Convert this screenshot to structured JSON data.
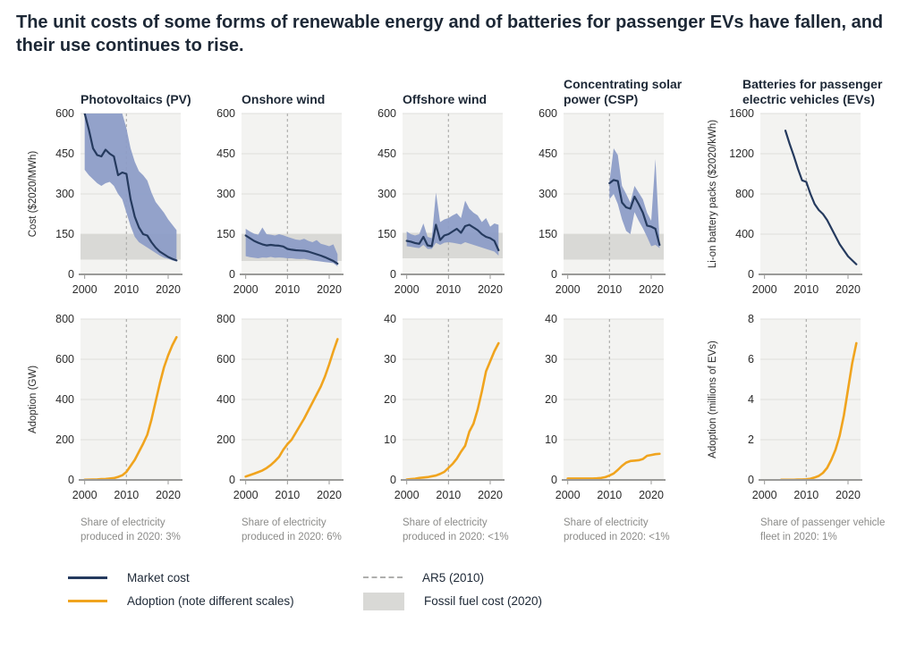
{
  "title": "The unit costs of some forms of renewable energy and of batteries for passenger EVs have fallen, and their use continues to rise.",
  "colors": {
    "navy": "#253A5E",
    "orange": "#F0A41E",
    "band": "#8D9DC7",
    "fossil": "#D9D9D6",
    "plot_bg": "#F3F3F1",
    "grid": "#DFDFDC",
    "axis": "#9A9A98",
    "dashed": "#AFAFAD",
    "tick": "#2B2B2B",
    "title_text": "#1D2836",
    "caption_text": "#8B8B89"
  },
  "legend": {
    "market_cost": "Market cost",
    "adoption": "Adoption (note different scales)",
    "ar5": "AR5 (2010)",
    "fossil": "Fossil fuel cost (2020)"
  },
  "chart_data": [
    {
      "id": "pv-cost",
      "type": "line",
      "title": "Photovoltaics (PV)",
      "ylabel": "Cost ($2020/MWh)",
      "ylim": [
        0,
        600
      ],
      "yticks": [
        0,
        150,
        300,
        450,
        600
      ],
      "xlim": [
        1999,
        2023
      ],
      "xticks": [
        2000,
        2010,
        2020
      ],
      "ar5_x": 2010,
      "fossil_band": [
        55,
        150
      ],
      "line_color": "navy",
      "band": {
        "years": [
          2000,
          2001,
          2002,
          2003,
          2004,
          2005,
          2006,
          2007,
          2008,
          2009,
          2010,
          2011,
          2012,
          2013,
          2014,
          2015,
          2016,
          2017,
          2018,
          2019,
          2020,
          2021,
          2022
        ],
        "hi": [
          660,
          660,
          660,
          660,
          660,
          655,
          645,
          635,
          620,
          600,
          545,
          470,
          420,
          385,
          370,
          350,
          305,
          270,
          250,
          230,
          205,
          185,
          165
        ],
        "lo": [
          390,
          370,
          355,
          340,
          330,
          340,
          345,
          330,
          300,
          280,
          230,
          180,
          140,
          120,
          110,
          100,
          90,
          80,
          70,
          62,
          58,
          52,
          48
        ]
      },
      "series": {
        "years": [
          2000,
          2001,
          2002,
          2003,
          2004,
          2005,
          2006,
          2007,
          2008,
          2009,
          2010,
          2011,
          2012,
          2013,
          2014,
          2015,
          2016,
          2017,
          2018,
          2019,
          2020,
          2021,
          2022
        ],
        "values": [
          600,
          540,
          470,
          445,
          440,
          465,
          450,
          440,
          370,
          380,
          375,
          280,
          215,
          175,
          150,
          145,
          120,
          100,
          85,
          75,
          65,
          58,
          52
        ]
      }
    },
    {
      "id": "onshore-cost",
      "type": "line",
      "title": "Onshore wind",
      "ylabel": null,
      "ylim": [
        0,
        600
      ],
      "yticks": [
        0,
        150,
        300,
        450,
        600
      ],
      "xlim": [
        1999,
        2023
      ],
      "xticks": [
        2000,
        2010,
        2020
      ],
      "ar5_x": 2010,
      "fossil_band": [
        50,
        150
      ],
      "line_color": "navy",
      "band": {
        "years": [
          2000,
          2001,
          2002,
          2003,
          2004,
          2005,
          2006,
          2007,
          2008,
          2009,
          2010,
          2011,
          2012,
          2013,
          2014,
          2015,
          2016,
          2017,
          2018,
          2019,
          2020,
          2021,
          2022
        ],
        "hi": [
          170,
          160,
          152,
          148,
          175,
          150,
          148,
          145,
          150,
          146,
          140,
          135,
          130,
          128,
          133,
          125,
          120,
          128,
          114,
          110,
          105,
          112,
          75
        ],
        "lo": [
          68,
          64,
          62,
          60,
          63,
          62,
          65,
          62,
          63,
          62,
          60,
          60,
          58,
          57,
          58,
          55,
          52,
          50,
          48,
          46,
          44,
          42,
          30
        ]
      },
      "series": {
        "years": [
          2000,
          2001,
          2002,
          2003,
          2004,
          2005,
          2006,
          2007,
          2008,
          2009,
          2010,
          2011,
          2012,
          2013,
          2014,
          2015,
          2016,
          2017,
          2018,
          2019,
          2020,
          2021,
          2022
        ],
        "values": [
          145,
          135,
          125,
          118,
          112,
          108,
          110,
          108,
          107,
          104,
          95,
          92,
          90,
          89,
          88,
          85,
          80,
          75,
          70,
          64,
          57,
          50,
          40
        ]
      }
    },
    {
      "id": "offshore-cost",
      "type": "line",
      "title": "Offshore wind",
      "ylabel": null,
      "ylim": [
        0,
        600
      ],
      "yticks": [
        0,
        150,
        300,
        450,
        600
      ],
      "xlim": [
        1999,
        2023
      ],
      "xticks": [
        2000,
        2010,
        2020
      ],
      "ar5_x": 2010,
      "fossil_band": [
        60,
        155
      ],
      "line_color": "navy",
      "band": {
        "years": [
          2000,
          2001,
          2002,
          2003,
          2004,
          2005,
          2006,
          2007,
          2008,
          2009,
          2010,
          2011,
          2012,
          2013,
          2014,
          2015,
          2016,
          2017,
          2018,
          2019,
          2020,
          2021,
          2022
        ],
        "hi": [
          160,
          150,
          145,
          150,
          190,
          140,
          135,
          305,
          195,
          205,
          210,
          220,
          228,
          210,
          275,
          245,
          230,
          220,
          195,
          210,
          178,
          190,
          185
        ],
        "lo": [
          105,
          103,
          100,
          98,
          110,
          95,
          95,
          118,
          110,
          118,
          120,
          118,
          115,
          112,
          120,
          115,
          110,
          105,
          100,
          95,
          90,
          85,
          70
        ]
      },
      "series": {
        "years": [
          2000,
          2001,
          2002,
          2003,
          2004,
          2005,
          2006,
          2007,
          2008,
          2009,
          2010,
          2011,
          2012,
          2013,
          2014,
          2015,
          2016,
          2017,
          2018,
          2019,
          2020,
          2021,
          2022
        ],
        "values": [
          125,
          122,
          117,
          114,
          140,
          108,
          105,
          185,
          128,
          145,
          150,
          160,
          170,
          155,
          180,
          185,
          175,
          165,
          150,
          140,
          135,
          125,
          90
        ]
      }
    },
    {
      "id": "csp-cost",
      "type": "line",
      "title": "Concentrating solar power (CSP)",
      "ylabel": null,
      "ylim": [
        0,
        600
      ],
      "yticks": [
        0,
        150,
        300,
        450,
        600
      ],
      "xlim": [
        1999,
        2023
      ],
      "xticks": [
        2000,
        2010,
        2020
      ],
      "ar5_x": 2010,
      "fossil_band": [
        55,
        150
      ],
      "line_color": "navy",
      "band": {
        "years": [
          2010,
          2011,
          2012,
          2013,
          2014,
          2015,
          2016,
          2017,
          2018,
          2019,
          2020,
          2021,
          2022
        ],
        "hi": [
          345,
          470,
          445,
          330,
          300,
          268,
          330,
          305,
          280,
          230,
          200,
          430,
          122
        ],
        "lo": [
          280,
          300,
          262,
          205,
          162,
          150,
          232,
          200,
          172,
          140,
          105,
          110,
          98
        ]
      },
      "series": {
        "years": [
          2010,
          2011,
          2012,
          2013,
          2014,
          2015,
          2016,
          2017,
          2018,
          2019,
          2020,
          2021,
          2022
        ],
        "values": [
          340,
          352,
          348,
          268,
          250,
          245,
          290,
          262,
          230,
          182,
          178,
          170,
          110
        ]
      }
    },
    {
      "id": "battery-cost",
      "type": "line",
      "title": "Batteries for passenger electric vehicles (EVs)",
      "ylabel": "Li-on battery packs ($2020/kWh)",
      "ylim": [
        0,
        1600
      ],
      "yticks": [
        0,
        400,
        800,
        1200,
        1600
      ],
      "xlim": [
        1999,
        2023
      ],
      "xticks": [
        2000,
        2010,
        2020
      ],
      "ar5_x": 2010,
      "fossil_band": null,
      "line_color": "navy",
      "band": null,
      "series": {
        "years": [
          2005,
          2006,
          2007,
          2008,
          2009,
          2010,
          2011,
          2012,
          2013,
          2014,
          2015,
          2016,
          2017,
          2018,
          2019,
          2020,
          2021,
          2022
        ],
        "values": [
          1430,
          1300,
          1180,
          1050,
          935,
          920,
          800,
          700,
          640,
          600,
          540,
          460,
          380,
          300,
          240,
          180,
          140,
          100
        ]
      }
    },
    {
      "id": "pv-adoption",
      "type": "line",
      "title": "",
      "ylabel": "Adoption (GW)",
      "ylim": [
        0,
        800
      ],
      "yticks": [
        0,
        200,
        400,
        600,
        800
      ],
      "xlim": [
        1999,
        2023
      ],
      "xticks": [
        2000,
        2010,
        2020
      ],
      "ar5_x": 2010,
      "fossil_band": null,
      "line_color": "orange",
      "band": null,
      "series": {
        "years": [
          2000,
          2001,
          2002,
          2003,
          2004,
          2005,
          2006,
          2007,
          2008,
          2009,
          2010,
          2011,
          2012,
          2013,
          2014,
          2015,
          2016,
          2017,
          2018,
          2019,
          2020,
          2021,
          2022
        ],
        "values": [
          1,
          1.5,
          2,
          2.5,
          4,
          5,
          7,
          9,
          15,
          23,
          40,
          70,
          100,
          140,
          180,
          225,
          300,
          390,
          480,
          560,
          620,
          670,
          710
        ]
      },
      "caption": "Share of electricity produced in 2020: 3%"
    },
    {
      "id": "onshore-adoption",
      "type": "line",
      "title": "",
      "ylabel": null,
      "ylim": [
        0,
        800
      ],
      "yticks": [
        0,
        200,
        400,
        600,
        800
      ],
      "xlim": [
        1999,
        2023
      ],
      "xticks": [
        2000,
        2010,
        2020
      ],
      "ar5_x": 2010,
      "fossil_band": null,
      "line_color": "orange",
      "band": null,
      "series": {
        "years": [
          2000,
          2001,
          2002,
          2003,
          2004,
          2005,
          2006,
          2007,
          2008,
          2009,
          2010,
          2011,
          2012,
          2013,
          2014,
          2015,
          2016,
          2017,
          2018,
          2019,
          2020,
          2021,
          2022
        ],
        "values": [
          17,
          24,
          31,
          39,
          47,
          59,
          74,
          93,
          115,
          150,
          178,
          200,
          235,
          270,
          305,
          345,
          385,
          425,
          465,
          515,
          575,
          640,
          700
        ]
      },
      "caption": "Share of electricity produced in 2020: 6%"
    },
    {
      "id": "offshore-adoption",
      "type": "line",
      "title": "",
      "ylabel": null,
      "ylim": [
        0,
        40
      ],
      "yticks": [
        0,
        10,
        20,
        30,
        40
      ],
      "xlim": [
        1999,
        2023
      ],
      "xticks": [
        2000,
        2010,
        2020
      ],
      "ar5_x": 2010,
      "fossil_band": null,
      "line_color": "orange",
      "band": null,
      "series": {
        "years": [
          2000,
          2001,
          2002,
          2003,
          2004,
          2005,
          2006,
          2007,
          2008,
          2009,
          2010,
          2011,
          2012,
          2013,
          2014,
          2015,
          2016,
          2017,
          2018,
          2019,
          2020,
          2021,
          2022
        ],
        "values": [
          0.1,
          0.2,
          0.3,
          0.5,
          0.6,
          0.7,
          0.9,
          1.1,
          1.5,
          2,
          3,
          4,
          5.3,
          7,
          8.5,
          12,
          14,
          17.5,
          22,
          27,
          29.5,
          32,
          34
        ]
      },
      "caption": "Share of electricity produced in 2020: <1%"
    },
    {
      "id": "csp-adoption",
      "type": "line",
      "title": "",
      "ylabel": null,
      "ylim": [
        0,
        40
      ],
      "yticks": [
        0,
        10,
        20,
        30,
        40
      ],
      "xlim": [
        1999,
        2023
      ],
      "xticks": [
        2000,
        2010,
        2020
      ],
      "ar5_x": 2010,
      "fossil_band": null,
      "line_color": "orange",
      "band": null,
      "series": {
        "years": [
          2000,
          2001,
          2002,
          2003,
          2004,
          2005,
          2006,
          2007,
          2008,
          2009,
          2010,
          2011,
          2012,
          2013,
          2014,
          2015,
          2016,
          2017,
          2018,
          2019,
          2020,
          2021,
          2022
        ],
        "values": [
          0.35,
          0.35,
          0.35,
          0.35,
          0.35,
          0.35,
          0.35,
          0.4,
          0.5,
          0.7,
          1.1,
          1.6,
          2.5,
          3.5,
          4.3,
          4.7,
          4.8,
          4.9,
          5.2,
          6,
          6.2,
          6.4,
          6.5
        ]
      },
      "caption": "Share of electricity produced in 2020: <1%"
    },
    {
      "id": "ev-adoption",
      "type": "line",
      "title": "",
      "ylabel": "Adoption (millions of EVs)",
      "ylim": [
        0,
        8
      ],
      "yticks": [
        0,
        2,
        4,
        6,
        8
      ],
      "xlim": [
        1999,
        2023
      ],
      "xticks": [
        2000,
        2010,
        2020
      ],
      "ar5_x": 2010,
      "fossil_band": null,
      "line_color": "orange",
      "band": null,
      "series": {
        "years": [
          2004,
          2005,
          2006,
          2007,
          2008,
          2009,
          2010,
          2011,
          2012,
          2013,
          2014,
          2015,
          2016,
          2017,
          2018,
          2019,
          2020,
          2021,
          2022
        ],
        "values": [
          0.01,
          0.01,
          0.01,
          0.01,
          0.02,
          0.02,
          0.03,
          0.06,
          0.12,
          0.2,
          0.35,
          0.6,
          1.0,
          1.5,
          2.2,
          3.2,
          4.5,
          5.8,
          6.8
        ]
      },
      "caption": "Share of passenger vehicle fleet in 2020: 1%"
    }
  ]
}
